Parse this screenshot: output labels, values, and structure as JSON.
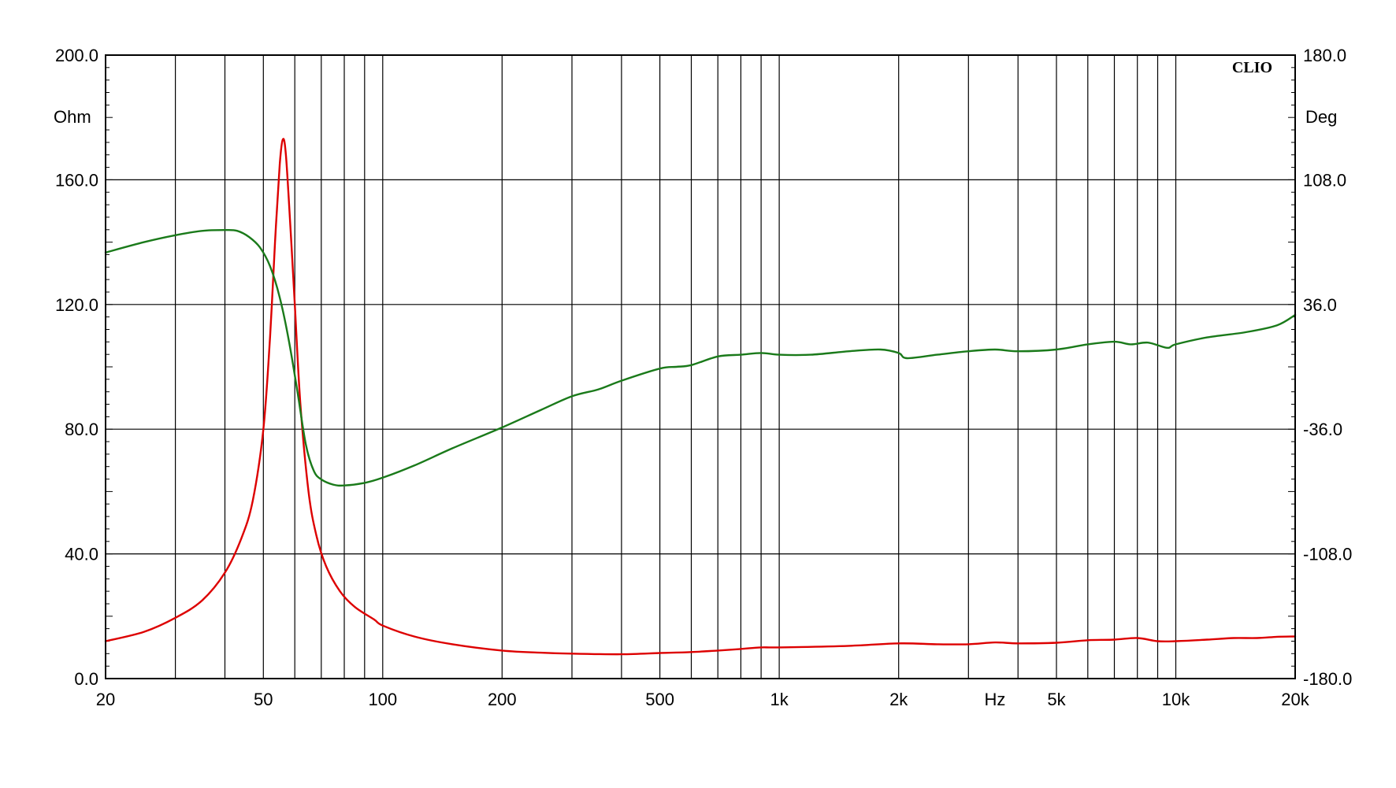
{
  "chart_data": {
    "type": "line",
    "brand": "CLIO",
    "xscale": "log",
    "xlim": [
      20,
      20000
    ],
    "x_tick_values": [
      20,
      50,
      100,
      200,
      500,
      1000,
      2000,
      5000,
      10000,
      20000
    ],
    "x_tick_labels": [
      "20",
      "50",
      "100",
      "200",
      "500",
      "1k",
      "2k",
      "5k",
      "10k",
      "20k"
    ],
    "x_unit_label": "Hz",
    "x_unit_position": 3500,
    "x_gridlines": [
      20,
      30,
      40,
      50,
      60,
      70,
      80,
      90,
      100,
      200,
      300,
      400,
      500,
      600,
      700,
      800,
      900,
      1000,
      2000,
      3000,
      4000,
      5000,
      6000,
      7000,
      8000,
      9000,
      10000,
      20000
    ],
    "y_left": {
      "label": "Ohm",
      "range": [
        0,
        200
      ],
      "ticks": [
        0,
        40,
        80,
        120,
        160,
        200
      ],
      "tick_labels": [
        "0.0",
        "40.0",
        "80.0",
        "120.0",
        "160.0",
        "200.0"
      ]
    },
    "y_right": {
      "label": "Deg",
      "range": [
        -180,
        180
      ],
      "ticks": [
        -180,
        -108,
        -36,
        36,
        108,
        180
      ],
      "tick_labels": [
        "-180.0",
        "-108.0",
        "-36.0",
        "36.0",
        "108.0",
        "180.0"
      ]
    },
    "grid": true,
    "series": [
      {
        "color": "#dd0000",
        "axis": "left",
        "points": [
          [
            20,
            12
          ],
          [
            25,
            15
          ],
          [
            30,
            19.5
          ],
          [
            35,
            25
          ],
          [
            40,
            34
          ],
          [
            44,
            45
          ],
          [
            47,
            57
          ],
          [
            50,
            80
          ],
          [
            52,
            110
          ],
          [
            53.5,
            140
          ],
          [
            55,
            165
          ],
          [
            56,
            173
          ],
          [
            57,
            168
          ],
          [
            58.5,
            145
          ],
          [
            60,
            120
          ],
          [
            62,
            88
          ],
          [
            65,
            60
          ],
          [
            68,
            46
          ],
          [
            72,
            36
          ],
          [
            78,
            28
          ],
          [
            85,
            23
          ],
          [
            95,
            19
          ],
          [
            100,
            17
          ],
          [
            120,
            13.5
          ],
          [
            150,
            11
          ],
          [
            200,
            9
          ],
          [
            250,
            8.3
          ],
          [
            300,
            8
          ],
          [
            400,
            7.8
          ],
          [
            500,
            8.2
          ],
          [
            600,
            8.5
          ],
          [
            700,
            9
          ],
          [
            800,
            9.5
          ],
          [
            900,
            10
          ],
          [
            1000,
            10
          ],
          [
            1500,
            10.5
          ],
          [
            2000,
            11.3
          ],
          [
            2500,
            11
          ],
          [
            3000,
            11
          ],
          [
            3500,
            11.6
          ],
          [
            4000,
            11.3
          ],
          [
            5000,
            11.5
          ],
          [
            6000,
            12.3
          ],
          [
            7000,
            12.5
          ],
          [
            8000,
            13
          ],
          [
            9000,
            12
          ],
          [
            10000,
            12
          ],
          [
            12000,
            12.5
          ],
          [
            14000,
            13
          ],
          [
            16000,
            13
          ],
          [
            18000,
            13.4
          ],
          [
            20000,
            13.5
          ]
        ]
      },
      {
        "color": "#1a7a1a",
        "axis": "right",
        "points": [
          [
            20,
            66
          ],
          [
            25,
            72
          ],
          [
            30,
            76
          ],
          [
            35,
            78.5
          ],
          [
            40,
            79
          ],
          [
            43,
            78.5
          ],
          [
            46,
            75
          ],
          [
            49,
            69
          ],
          [
            52,
            58
          ],
          [
            55,
            40
          ],
          [
            58,
            15
          ],
          [
            61,
            -15
          ],
          [
            64,
            -45
          ],
          [
            67,
            -60
          ],
          [
            70,
            -65
          ],
          [
            75,
            -68
          ],
          [
            80,
            -68.5
          ],
          [
            90,
            -67
          ],
          [
            100,
            -64
          ],
          [
            120,
            -57
          ],
          [
            150,
            -47
          ],
          [
            200,
            -35
          ],
          [
            250,
            -25
          ],
          [
            300,
            -17
          ],
          [
            350,
            -13
          ],
          [
            400,
            -8
          ],
          [
            500,
            -1
          ],
          [
            550,
            0
          ],
          [
            600,
            1
          ],
          [
            700,
            6
          ],
          [
            800,
            7
          ],
          [
            900,
            8
          ],
          [
            1000,
            7
          ],
          [
            1200,
            7
          ],
          [
            1500,
            9
          ],
          [
            1800,
            10
          ],
          [
            2000,
            8
          ],
          [
            2100,
            5
          ],
          [
            2500,
            7
          ],
          [
            3000,
            9
          ],
          [
            3500,
            10
          ],
          [
            4000,
            9
          ],
          [
            5000,
            10
          ],
          [
            6000,
            13
          ],
          [
            7000,
            14.5
          ],
          [
            7700,
            13
          ],
          [
            8500,
            14
          ],
          [
            9500,
            11
          ],
          [
            10000,
            13
          ],
          [
            12000,
            17
          ],
          [
            15000,
            20
          ],
          [
            18000,
            24
          ],
          [
            20000,
            30
          ]
        ]
      }
    ]
  }
}
